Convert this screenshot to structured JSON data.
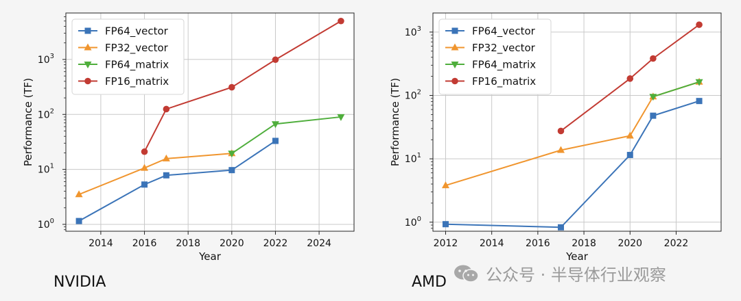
{
  "captions": {
    "left": "NVIDIA",
    "right": "AMD"
  },
  "watermark": {
    "text": "公众号 · 半导体行业观察",
    "icon": "wechat-icon"
  },
  "colors": {
    "FP64_vector": "#3b74b8",
    "FP32_vector": "#f0952e",
    "FP64_matrix": "#4fae3c",
    "FP16_matrix": "#c23b33"
  },
  "chart_data": [
    {
      "type": "line",
      "title": "",
      "xlabel": "Year",
      "ylabel": "Performance (TF)",
      "xlim": [
        2012.4,
        2025.6
      ],
      "ylim": [
        0.75,
        7000
      ],
      "y_scale": "log",
      "xticks": [
        2014,
        2016,
        2018,
        2020,
        2022,
        2024
      ],
      "xtick_labels": [
        "2014",
        "2016",
        "2018",
        "2020",
        "2022",
        "2024"
      ],
      "yticks": [
        1,
        10,
        100,
        1000
      ],
      "ytick_labels": [
        [
          "10",
          "0"
        ],
        [
          "10",
          "1"
        ],
        [
          "10",
          "2"
        ],
        [
          "10",
          "3"
        ]
      ],
      "grid": true,
      "legend_position": "top-left",
      "series": [
        {
          "name": "FP64_vector",
          "marker": "square",
          "x": [
            2013,
            2016,
            2017,
            2020,
            2022
          ],
          "y": [
            1.15,
            5.3,
            7.8,
            9.7,
            33
          ]
        },
        {
          "name": "FP32_vector",
          "marker": "triangle-up",
          "x": [
            2013,
            2016,
            2017,
            2020
          ],
          "y": [
            3.5,
            10.6,
            15.7,
            19.5
          ]
        },
        {
          "name": "FP64_matrix",
          "marker": "triangle-down",
          "x": [
            2020,
            2022,
            2025
          ],
          "y": [
            19.5,
            67,
            90
          ]
        },
        {
          "name": "FP16_matrix",
          "marker": "circle",
          "x": [
            2016,
            2017,
            2020,
            2022,
            2025
          ],
          "y": [
            21,
            125,
            312,
            990,
            5000
          ]
        }
      ]
    },
    {
      "type": "line",
      "title": "",
      "xlabel": "Year",
      "ylabel": "Performance (TF)",
      "xlim": [
        2011.45,
        2023.95
      ],
      "ylim": [
        0.72,
        2000
      ],
      "y_scale": "log",
      "xticks": [
        2012,
        2014,
        2016,
        2018,
        2020,
        2022
      ],
      "xtick_labels": [
        "2012",
        "2014",
        "2016",
        "2018",
        "2020",
        "2022"
      ],
      "yticks": [
        1,
        10,
        100,
        1000
      ],
      "ytick_labels": [
        [
          "10",
          "0"
        ],
        [
          "10",
          "1"
        ],
        [
          "10",
          "2"
        ],
        [
          "10",
          "3"
        ]
      ],
      "grid": true,
      "legend_position": "top-left",
      "series": [
        {
          "name": "FP64_vector",
          "marker": "square",
          "x": [
            2012,
            2017,
            2020,
            2021,
            2023
          ],
          "y": [
            0.93,
            0.83,
            11.5,
            47.9,
            81.7
          ]
        },
        {
          "name": "FP32_vector",
          "marker": "triangle-up",
          "x": [
            2012,
            2017,
            2020,
            2021,
            2023
          ],
          "y": [
            3.8,
            13.7,
            23.1,
            95.7,
            163.4
          ]
        },
        {
          "name": "FP64_matrix",
          "marker": "triangle-down",
          "x": [
            2021,
            2023
          ],
          "y": [
            95.7,
            163.4
          ]
        },
        {
          "name": "FP16_matrix",
          "marker": "circle",
          "x": [
            2017,
            2020,
            2021,
            2023
          ],
          "y": [
            27.5,
            184.6,
            383,
            1307
          ]
        }
      ]
    }
  ]
}
